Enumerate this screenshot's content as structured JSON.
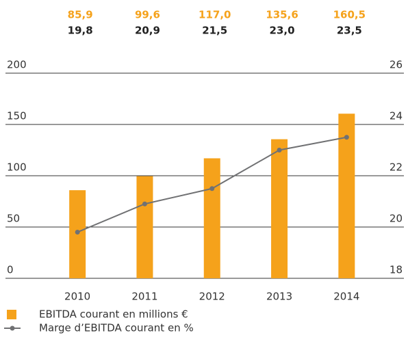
{
  "chart_data": {
    "type": "bar",
    "categories": [
      "2010",
      "2011",
      "2012",
      "2013",
      "2014"
    ],
    "series": [
      {
        "name": "EBITDA courant en millions €",
        "color": "#f5a21b",
        "values": [
          85.9,
          99.6,
          117.0,
          135.6,
          160.5
        ],
        "value_labels": [
          "85,9",
          "99,6",
          "117,0",
          "135,6",
          "160,5"
        ]
      },
      {
        "name": "Marge d’EBITDA courant en %",
        "color": "#707173",
        "type": "line",
        "axis": "y2",
        "values": [
          19.8,
          20.9,
          21.5,
          23.0,
          23.5
        ],
        "value_labels": [
          "19,8",
          "20,9",
          "21,5",
          "23,0",
          "23,5"
        ]
      }
    ],
    "ylim": [
      0,
      200
    ],
    "yticks": [
      0,
      50,
      100,
      150,
      200
    ],
    "y2lim": [
      18,
      26
    ],
    "y2ticks": [
      18,
      20,
      22,
      24,
      26
    ],
    "grid": true
  }
}
